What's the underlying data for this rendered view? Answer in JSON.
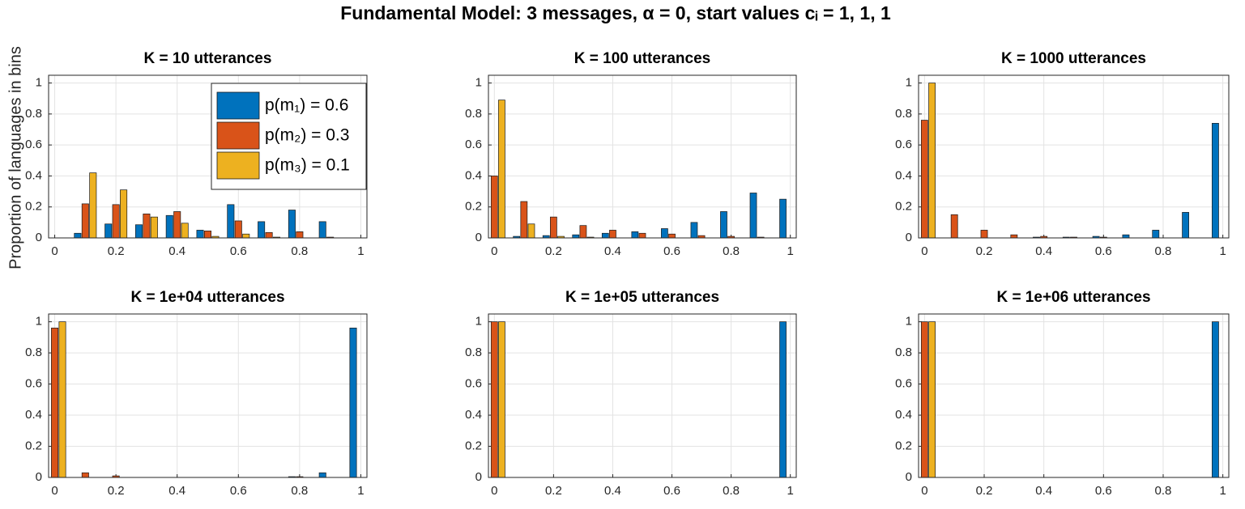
{
  "title": "Fundamental Model:  3 messages, α = 0, start values cᵢ = 1, 1, 1",
  "ylabel": "Proportion of languages in bins",
  "chart_data": [
    {
      "type": "bar",
      "title": "K = 10 utterances",
      "x": [
        0,
        0.1,
        0.2,
        0.3,
        0.4,
        0.5,
        0.6,
        0.7,
        0.8,
        0.9,
        1
      ],
      "series": [
        {
          "name": "p(m₁) = 0.6",
          "color": "#0072bd",
          "values": [
            0,
            0.03,
            0.09,
            0.085,
            0.145,
            0.05,
            0.215,
            0.105,
            0.18,
            0.105,
            0
          ]
        },
        {
          "name": "p(m₂) = 0.3",
          "color": "#d95319",
          "values": [
            0,
            0.22,
            0.215,
            0.155,
            0.17,
            0.045,
            0.11,
            0.035,
            0.04,
            0.005,
            0
          ]
        },
        {
          "name": "p(m₃) = 0.1",
          "color": "#edb120",
          "values": [
            0,
            0.42,
            0.31,
            0.135,
            0.095,
            0.01,
            0.025,
            0.005,
            0,
            0,
            0
          ]
        }
      ],
      "xlim": [
        -0.02,
        1.02
      ],
      "ylim": [
        0,
        1.05
      ],
      "xticks": [
        0,
        0.2,
        0.4,
        0.6,
        0.8,
        1
      ],
      "yticks": [
        0,
        0.2,
        0.4,
        0.6,
        0.8,
        1
      ],
      "grid": true,
      "legend": "top right"
    },
    {
      "type": "bar",
      "title": "K = 100 utterances",
      "x": [
        0,
        0.1,
        0.2,
        0.3,
        0.4,
        0.5,
        0.6,
        0.7,
        0.8,
        0.9,
        1
      ],
      "series": [
        {
          "color": "#0072bd",
          "values": [
            0,
            0.01,
            0.015,
            0.02,
            0.03,
            0.04,
            0.06,
            0.1,
            0.17,
            0.29,
            0.25
          ]
        },
        {
          "color": "#d95319",
          "values": [
            0.4,
            0.235,
            0.135,
            0.08,
            0.05,
            0.03,
            0.025,
            0.015,
            0.01,
            0.005,
            0
          ]
        },
        {
          "color": "#edb120",
          "values": [
            0.89,
            0.09,
            0.01,
            0.005,
            0,
            0,
            0,
            0,
            0,
            0,
            0
          ]
        }
      ],
      "xlim": [
        -0.02,
        1.02
      ],
      "ylim": [
        0,
        1.05
      ],
      "xticks": [
        0,
        0.2,
        0.4,
        0.6,
        0.8,
        1
      ],
      "yticks": [
        0,
        0.2,
        0.4,
        0.6,
        0.8,
        1
      ],
      "grid": true
    },
    {
      "type": "bar",
      "title": "K = 1000 utterances",
      "x": [
        0,
        0.1,
        0.2,
        0.3,
        0.4,
        0.5,
        0.6,
        0.7,
        0.8,
        0.9,
        1
      ],
      "series": [
        {
          "color": "#0072bd",
          "values": [
            0,
            0,
            0,
            0,
            0.005,
            0.005,
            0.01,
            0.02,
            0.05,
            0.165,
            0.74
          ]
        },
        {
          "color": "#d95319",
          "values": [
            0.76,
            0.15,
            0.05,
            0.02,
            0.01,
            0.005,
            0.005,
            0,
            0,
            0,
            0
          ]
        },
        {
          "color": "#edb120",
          "values": [
            1,
            0,
            0,
            0,
            0,
            0,
            0,
            0,
            0,
            0,
            0
          ]
        }
      ],
      "xlim": [
        -0.02,
        1.02
      ],
      "ylim": [
        0,
        1.05
      ],
      "xticks": [
        0,
        0.2,
        0.4,
        0.6,
        0.8,
        1
      ],
      "yticks": [
        0,
        0.2,
        0.4,
        0.6,
        0.8,
        1
      ],
      "grid": true
    },
    {
      "type": "bar",
      "title": "K = 1e+04 utterances",
      "x": [
        0,
        0.1,
        0.2,
        0.3,
        0.4,
        0.5,
        0.6,
        0.7,
        0.8,
        0.9,
        1
      ],
      "series": [
        {
          "color": "#0072bd",
          "values": [
            0,
            0,
            0,
            0,
            0,
            0,
            0,
            0,
            0.005,
            0.03,
            0.96
          ]
        },
        {
          "color": "#d95319",
          "values": [
            0.96,
            0.03,
            0.01,
            0,
            0,
            0,
            0,
            0,
            0.005,
            0,
            0
          ]
        },
        {
          "color": "#edb120",
          "values": [
            1,
            0,
            0,
            0,
            0,
            0,
            0,
            0,
            0,
            0,
            0
          ]
        }
      ],
      "xlim": [
        -0.02,
        1.02
      ],
      "ylim": [
        0,
        1.05
      ],
      "xticks": [
        0,
        0.2,
        0.4,
        0.6,
        0.8,
        1
      ],
      "yticks": [
        0,
        0.2,
        0.4,
        0.6,
        0.8,
        1
      ],
      "grid": true
    },
    {
      "type": "bar",
      "title": "K = 1e+05 utterances",
      "x": [
        0,
        0.1,
        0.2,
        0.3,
        0.4,
        0.5,
        0.6,
        0.7,
        0.8,
        0.9,
        1
      ],
      "series": [
        {
          "color": "#0072bd",
          "values": [
            0,
            0,
            0,
            0,
            0,
            0,
            0,
            0,
            0,
            0,
            1
          ]
        },
        {
          "color": "#d95319",
          "values": [
            1,
            0,
            0,
            0,
            0,
            0,
            0,
            0,
            0,
            0,
            0
          ]
        },
        {
          "color": "#edb120",
          "values": [
            1,
            0,
            0,
            0,
            0,
            0,
            0,
            0,
            0,
            0,
            0
          ]
        }
      ],
      "xlim": [
        -0.02,
        1.02
      ],
      "ylim": [
        0,
        1.05
      ],
      "xticks": [
        0,
        0.2,
        0.4,
        0.6,
        0.8,
        1
      ],
      "yticks": [
        0,
        0.2,
        0.4,
        0.6,
        0.8,
        1
      ],
      "grid": true
    },
    {
      "type": "bar",
      "title": "K = 1e+06 utterances",
      "x": [
        0,
        0.1,
        0.2,
        0.3,
        0.4,
        0.5,
        0.6,
        0.7,
        0.8,
        0.9,
        1
      ],
      "series": [
        {
          "color": "#0072bd",
          "values": [
            0,
            0,
            0,
            0,
            0,
            0,
            0,
            0,
            0,
            0,
            1
          ]
        },
        {
          "color": "#d95319",
          "values": [
            1,
            0,
            0,
            0,
            0,
            0,
            0,
            0,
            0,
            0,
            0
          ]
        },
        {
          "color": "#edb120",
          "values": [
            1,
            0,
            0,
            0,
            0,
            0,
            0,
            0,
            0,
            0,
            0
          ]
        }
      ],
      "xlim": [
        -0.02,
        1.02
      ],
      "ylim": [
        0,
        1.05
      ],
      "xticks": [
        0,
        0.2,
        0.4,
        0.6,
        0.8,
        1
      ],
      "yticks": [
        0,
        0.2,
        0.4,
        0.6,
        0.8,
        1
      ],
      "grid": true
    }
  ]
}
